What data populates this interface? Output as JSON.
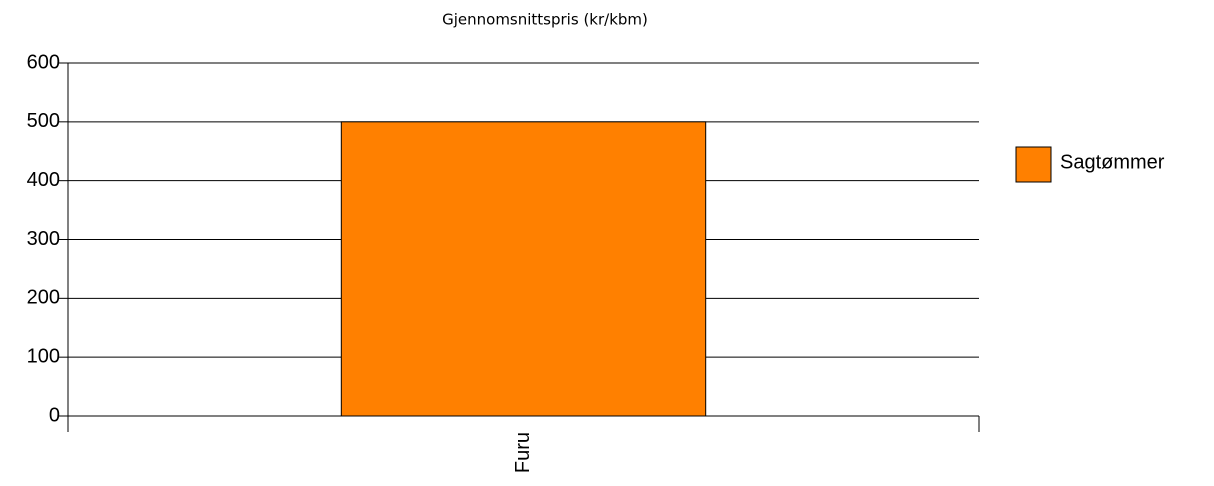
{
  "chart_data": {
    "type": "bar",
    "title": "Gjennomsnittspris (kr/kbm)",
    "categories": [
      "Furu"
    ],
    "series": [
      {
        "name": "Sagtømmer",
        "color": "#ff8000",
        "values": [
          500
        ]
      }
    ],
    "ylim": [
      0,
      600
    ],
    "yticks": [
      0,
      100,
      200,
      300,
      400,
      500,
      600
    ],
    "grid": true,
    "legend": "right"
  }
}
